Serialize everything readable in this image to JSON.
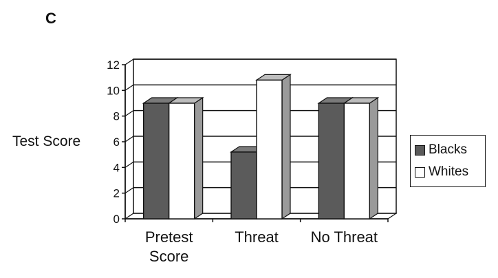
{
  "panel_label": "C",
  "colors": {
    "blacks_front": "#5b5b5b",
    "blacks_side": "#8a8a8a",
    "blacks_top": "#7a7a7a",
    "whites_front": "#ffffff",
    "whites_side": "#9a9a9a",
    "whites_top": "#bdbdbd"
  },
  "chart_data": {
    "type": "bar",
    "title": "",
    "xlabel": "",
    "ylabel": "Test Score",
    "ylim": [
      0,
      12
    ],
    "yticks": [
      "0",
      "2",
      "4",
      "6",
      "8",
      "10",
      "12"
    ],
    "grid": true,
    "legend_position": "right",
    "categories": [
      "Pretest Score",
      "Threat",
      "No Threat"
    ],
    "category_lines": [
      [
        "Pretest",
        "Score"
      ],
      [
        "Threat"
      ],
      [
        "No Threat"
      ]
    ],
    "series": [
      {
        "name": "Blacks",
        "values": [
          9,
          5.2,
          9
        ]
      },
      {
        "name": "Whites",
        "values": [
          9,
          10.8,
          9
        ]
      }
    ]
  }
}
